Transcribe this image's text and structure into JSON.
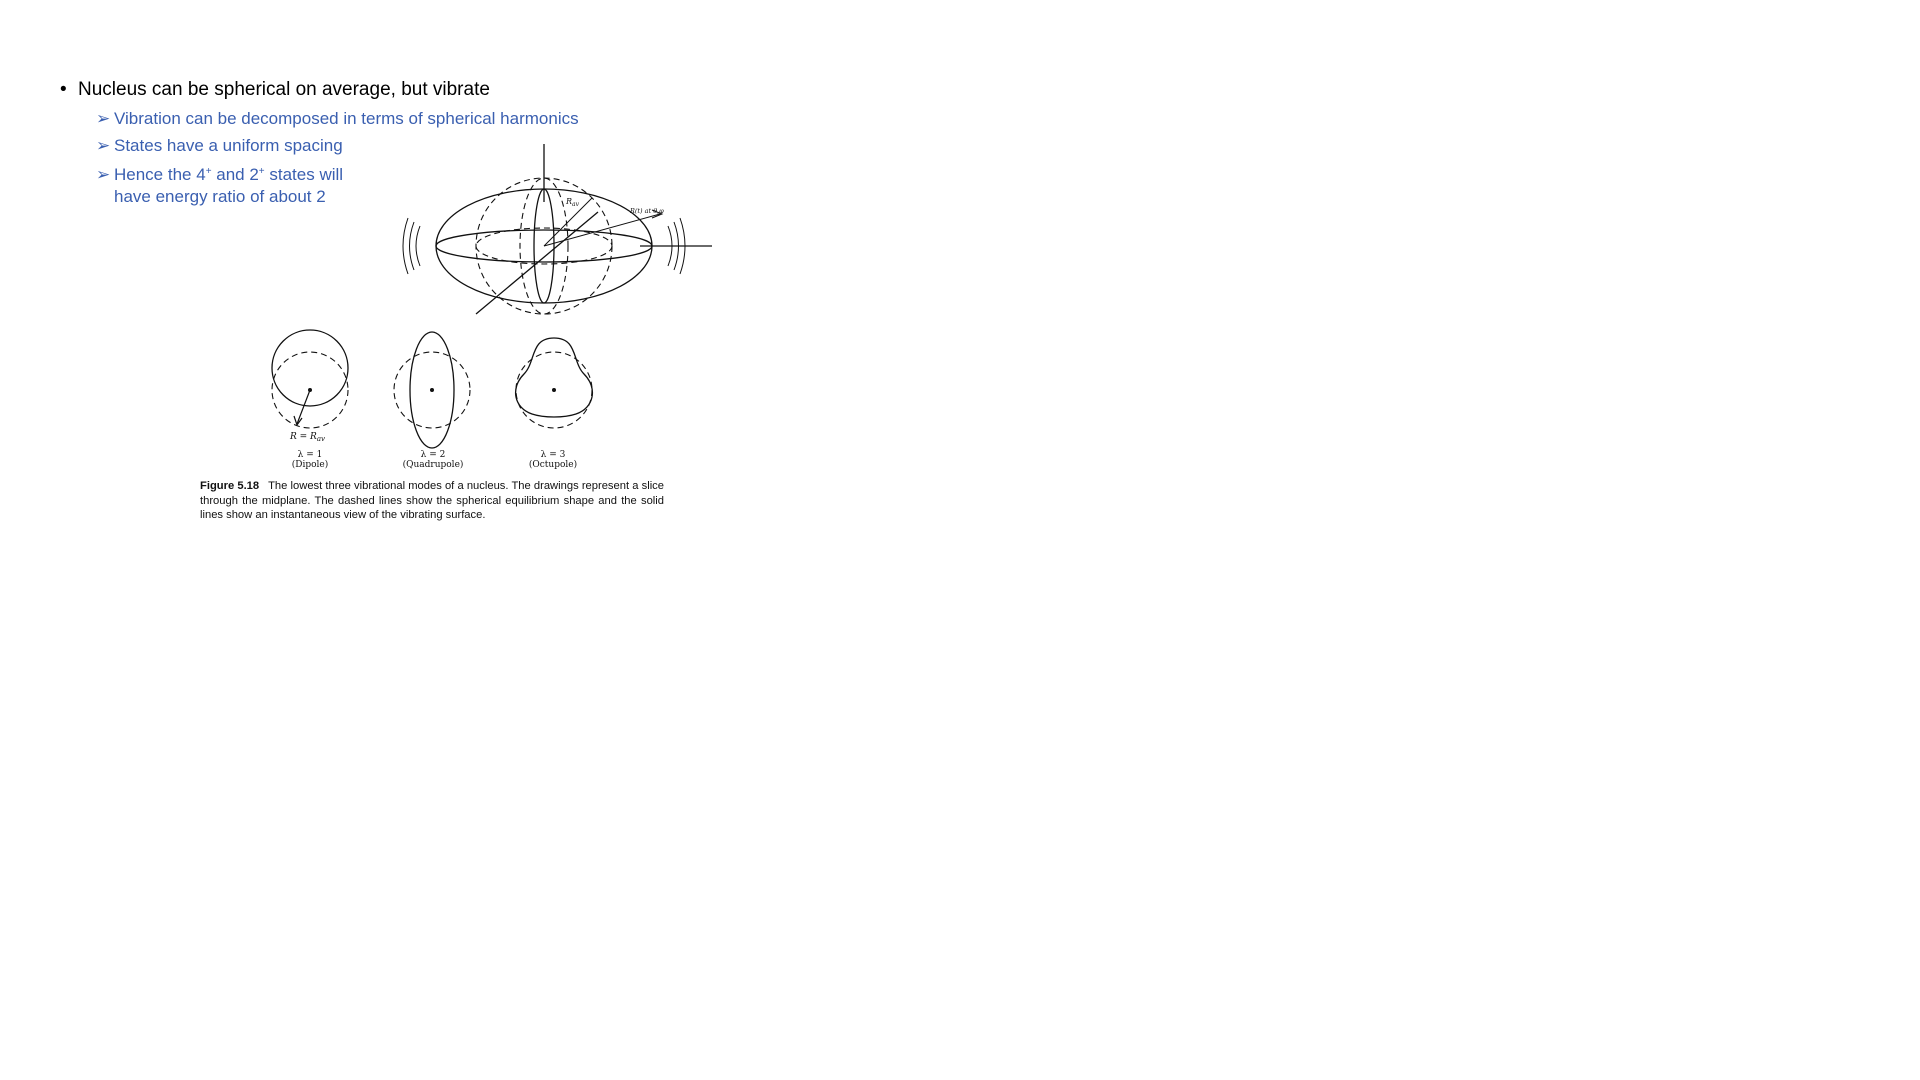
{
  "bullets": {
    "main": "Nucleus can be spherical on average, but vibrate",
    "sub": [
      "Vibration can be decomposed in terms of spherical harmonics",
      "States have a uniform spacing"
    ],
    "sub3": {
      "pre": "Hence the 4",
      "sup1": "+",
      "mid": " and 2",
      "sup2": "+",
      "post": " states will",
      "line2": "have energy ratio of about 2"
    }
  },
  "figure": {
    "labels": {
      "rav_top": "R",
      "rav_top_sub": "av",
      "r_theta_phi": "R(t) at θ,φ",
      "r_eq": "R = R",
      "r_eq_sub": "av"
    },
    "modes": [
      {
        "lambda": "λ = 1",
        "name": "(Dipole)"
      },
      {
        "lambda": "λ = 2",
        "name": "(Quadrupole)"
      },
      {
        "lambda": "λ = 3",
        "name": "(Octupole)"
      }
    ],
    "caption": {
      "number": "Figure 5.18",
      "text": "The lowest three vibrational modes of a nucleus. The drawings represent a slice through the midplane. The dashed lines show the spherical equilibrium shape and the solid lines show an instantaneous view of the vibrating surface."
    }
  },
  "colors": {
    "accent": "#3a5fb0",
    "text": "#000000"
  }
}
